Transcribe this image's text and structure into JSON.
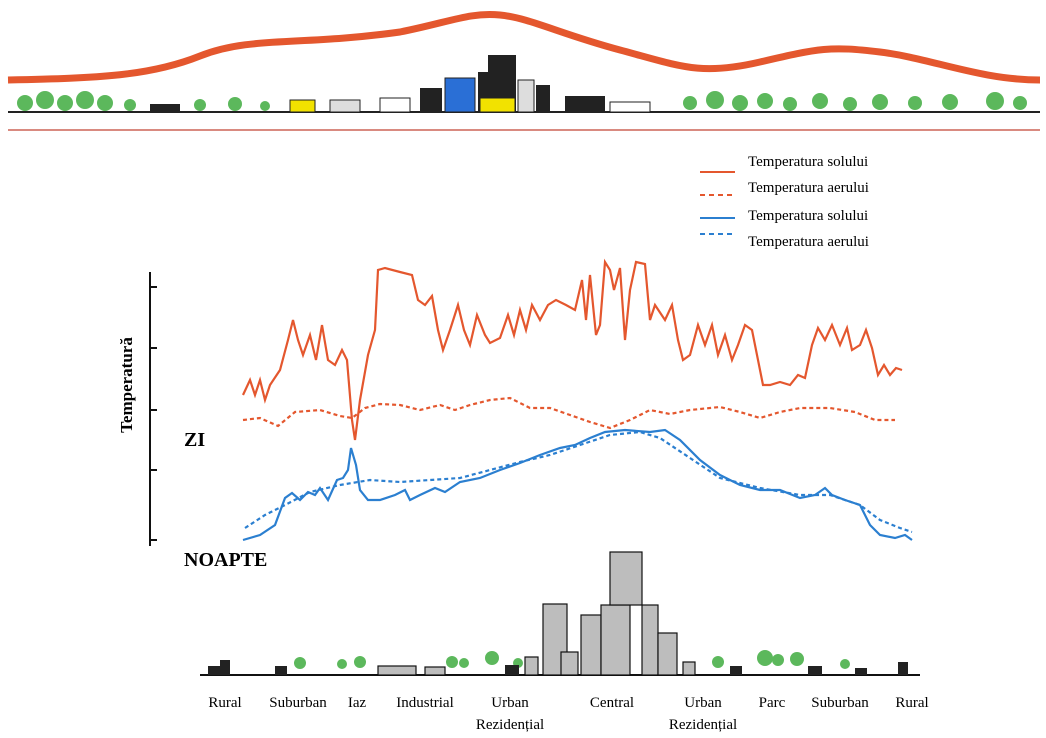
{
  "legend": [
    "Temperatura solului",
    "Temperatura aerului",
    "Temperatura solului",
    "Temperatura aerului"
  ],
  "y_axis_label": "Temperatură",
  "day_label": "ZI",
  "night_label": "NOAPTE",
  "zones": [
    "Rural",
    "Suburban",
    "Iaz",
    "Industrial",
    [
      "Urban",
      "Rezidențial"
    ],
    "Central",
    [
      "Urban",
      "Rezidențial"
    ],
    "Parc",
    "Suburban",
    "Rural"
  ]
}
